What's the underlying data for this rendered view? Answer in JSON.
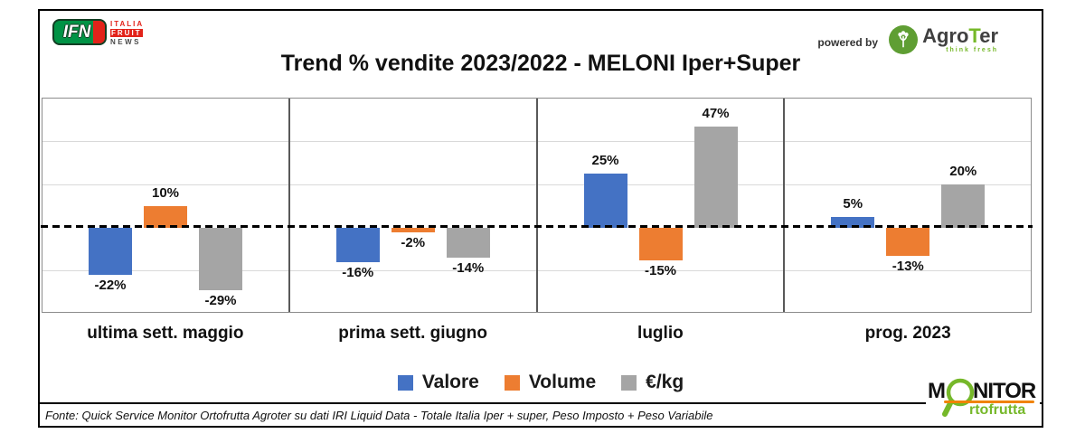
{
  "title": "Trend % vendite 2023/2022 - MELONI Iper+Super",
  "header": {
    "ifn": {
      "acronym": "IFN",
      "word1": "ITALIA",
      "word2": "FRUIT",
      "word3": "NEWS"
    },
    "powered_by": "powered by",
    "agroter": {
      "part_agro": "Agro",
      "part_t": "T",
      "part_er": "er",
      "tagline": "think fresh"
    }
  },
  "chart_data": {
    "type": "bar",
    "title": "Trend % vendite 2023/2022 - MELONI Iper+Super",
    "categories": [
      "ultima sett. maggio",
      "prima sett. giugno",
      "luglio",
      "prog. 2023"
    ],
    "series": [
      {
        "name": "Valore",
        "color": "#4472C4",
        "values": [
          -22,
          -16,
          25,
          5
        ]
      },
      {
        "name": "Volume",
        "color": "#ED7D31",
        "values": [
          10,
          -2,
          -15,
          -13
        ]
      },
      {
        "name": "€/kg",
        "color": "#A5A5A5",
        "values": [
          -29,
          -14,
          47,
          20
        ]
      }
    ],
    "value_suffix": "%",
    "ylim": [
      -40,
      60
    ],
    "grid_step": 20,
    "zero_line": "dashed",
    "grid": true,
    "legend_position": "bottom",
    "panel_dividers": true
  },
  "footer": {
    "source": "Fonte: Quick Service Monitor Ortofrutta Agroter su dati IRI Liquid Data - Totale Italia Iper + super, Peso Imposto + Peso Variabile"
  },
  "monitor": {
    "part_m": "M",
    "part_nitor": "NITOR",
    "part_rtofrutta": "rtofrutta"
  },
  "colors": {
    "valore_blue": "#4472C4",
    "volume_orange": "#ED7D31",
    "eur_kg_gray": "#A5A5A5",
    "ifn_green": "#009345",
    "ifn_red": "#E2231A",
    "agroter_green": "#76B82A",
    "monitor_orange": "#F08300"
  }
}
